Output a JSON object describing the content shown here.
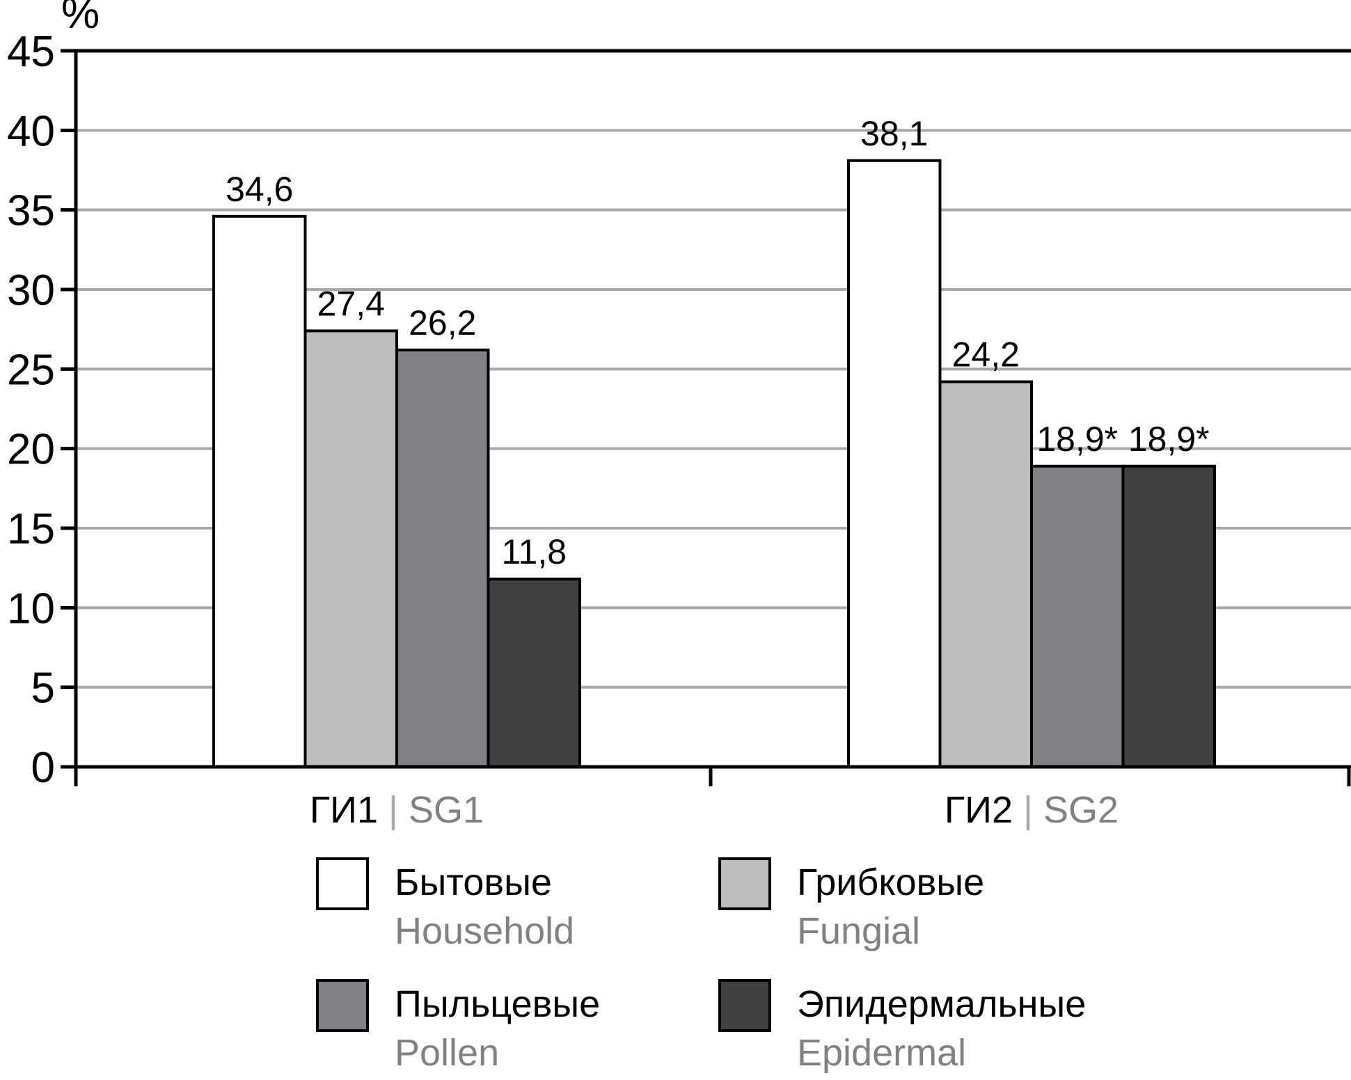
{
  "chart_data": {
    "type": "bar",
    "ylabel": "%",
    "ylim": [
      0,
      45
    ],
    "yticks": [
      0,
      5,
      10,
      15,
      20,
      25,
      30,
      35,
      40,
      45
    ],
    "grid": true,
    "categories": [
      {
        "ru": "ГИ1",
        "sep": "|",
        "en": "SG1"
      },
      {
        "ru": "ГИ2",
        "sep": "|",
        "en": "SG2"
      }
    ],
    "series": [
      {
        "name_ru": "Бытовые",
        "name_en": "Household",
        "color": "#ffffff",
        "values": [
          34.6,
          38.1
        ],
        "labels": [
          "34,6",
          "38,1"
        ]
      },
      {
        "name_ru": "Грибковые",
        "name_en": "Fungial",
        "color": "#bcbdbf",
        "values": [
          27.4,
          24.2
        ],
        "labels": [
          "27,4",
          "24,2"
        ]
      },
      {
        "name_ru": "Пыльцевые",
        "name_en": "Pollen",
        "color": "#808184",
        "values": [
          26.2,
          18.9
        ],
        "labels": [
          "26,2",
          "18,9*"
        ]
      },
      {
        "name_ru": "Эпидермальные",
        "name_en": "Epidermal",
        "color": "#414143",
        "values": [
          11.8,
          18.9
        ],
        "labels": [
          "11,8",
          "18,9*"
        ]
      }
    ],
    "legend_position": "bottom"
  },
  "colors": {
    "grid": "#a7a9ac",
    "axis": "#000000",
    "english_text": "#808184"
  }
}
